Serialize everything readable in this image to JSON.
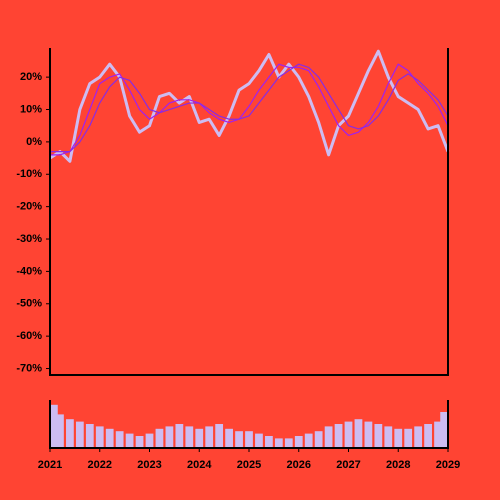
{
  "chart_data": [
    {
      "type": "line",
      "x": [
        2021.0,
        2021.2,
        2021.4,
        2021.6,
        2021.8,
        2022.0,
        2022.2,
        2022.4,
        2022.6,
        2022.8,
        2023.0,
        2023.2,
        2023.4,
        2023.6,
        2023.8,
        2024.0,
        2024.2,
        2024.4,
        2024.6,
        2024.8,
        2025.0,
        2025.2,
        2025.4,
        2025.6,
        2025.8,
        2026.0,
        2026.2,
        2026.4,
        2026.6,
        2026.8,
        2027.0,
        2027.2,
        2027.4,
        2027.6,
        2027.8,
        2028.0,
        2028.2,
        2028.4,
        2028.6,
        2028.8,
        2029.0
      ],
      "series": [
        {
          "color": "#cdbcf2",
          "width": 3,
          "values": [
            -5,
            -3,
            -6,
            10,
            18,
            20,
            24,
            20,
            8,
            3,
            5,
            14,
            15,
            12,
            14,
            6,
            7,
            2,
            8,
            16,
            18,
            22,
            27,
            20,
            24,
            20,
            14,
            6,
            -4,
            5,
            8,
            15,
            22,
            28,
            20,
            14,
            12,
            10,
            4,
            5,
            -3
          ]
        },
        {
          "color": "#a020f0",
          "width": 1.2,
          "values": [
            -4,
            -4,
            -3,
            2,
            10,
            18,
            20,
            21,
            16,
            10,
            7,
            9,
            12,
            13,
            13,
            12,
            9,
            7,
            6,
            7,
            11,
            16,
            20,
            24,
            23,
            23,
            22,
            17,
            11,
            5,
            2,
            3,
            6,
            11,
            18,
            24,
            22,
            18,
            15,
            11,
            5
          ]
        },
        {
          "color": "#8a2be2",
          "width": 1.2,
          "values": [
            -3,
            -3,
            -3,
            0,
            5,
            12,
            17,
            20,
            19,
            15,
            10,
            9,
            10,
            11,
            12,
            12,
            10,
            8,
            7,
            7,
            8,
            12,
            16,
            20,
            22,
            24,
            23,
            20,
            15,
            10,
            5,
            4,
            5,
            8,
            13,
            19,
            21,
            19,
            16,
            13,
            8
          ]
        }
      ],
      "xlim": [
        2021,
        2029
      ],
      "ylim": [
        -72,
        29
      ],
      "yticks": [
        {
          "value": 20,
          "label": "20%"
        },
        {
          "value": 10,
          "label": "10%"
        },
        {
          "value": 0,
          "label": "0%"
        },
        {
          "value": -10,
          "label": "-10%"
        },
        {
          "value": -20,
          "label": "-20%"
        },
        {
          "value": -30,
          "label": "-30%"
        },
        {
          "value": -40,
          "label": "-40%"
        },
        {
          "value": -50,
          "label": "-50%"
        },
        {
          "value": -60,
          "label": "-60%"
        },
        {
          "value": -70,
          "label": "-70%"
        }
      ]
    },
    {
      "type": "bar",
      "x": [
        2021.0,
        2021.2,
        2021.4,
        2021.6,
        2021.8,
        2022.0,
        2022.2,
        2022.4,
        2022.6,
        2022.8,
        2023.0,
        2023.2,
        2023.4,
        2023.6,
        2023.8,
        2024.0,
        2024.2,
        2024.4,
        2024.6,
        2024.8,
        2025.0,
        2025.2,
        2025.4,
        2025.6,
        2025.8,
        2026.0,
        2026.2,
        2026.4,
        2026.6,
        2026.8,
        2027.0,
        2027.2,
        2027.4,
        2027.6,
        2027.8,
        2028.0,
        2028.2,
        2028.4,
        2028.6,
        2028.8,
        2029.0
      ],
      "color": "#cdbcf2",
      "values": [
        90,
        70,
        60,
        55,
        50,
        45,
        40,
        35,
        30,
        25,
        30,
        40,
        45,
        50,
        45,
        40,
        45,
        50,
        40,
        35,
        35,
        30,
        25,
        20,
        20,
        25,
        30,
        35,
        45,
        50,
        55,
        60,
        55,
        50,
        45,
        40,
        40,
        45,
        50,
        55,
        75
      ],
      "ylim": [
        0,
        100
      ],
      "xlim": [
        2021,
        2029
      ],
      "xticks": [
        2021,
        2022,
        2023,
        2024,
        2025,
        2026,
        2027,
        2028,
        2029
      ]
    }
  ]
}
